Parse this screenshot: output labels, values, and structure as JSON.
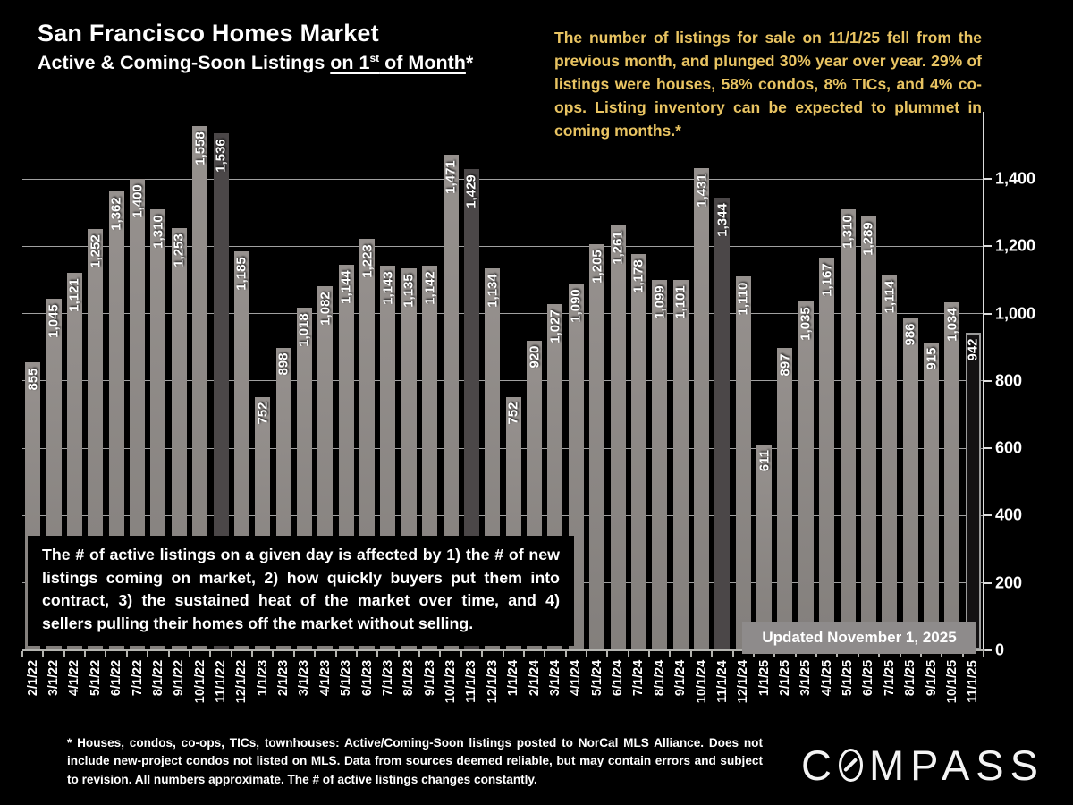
{
  "header": {
    "title": "San Francisco Homes Market",
    "subtitle_prefix": "Active & Coming-Soon Listings ",
    "subtitle_underline_1": "on 1",
    "subtitle_superscript": "st",
    "subtitle_underline_2": " of Month",
    "subtitle_suffix": "*"
  },
  "commentary": "The number of listings for sale on 11/1/25 fell from the previous month, and plunged 30% year over year. 29% of listings were houses, 58% condos, 8% TICs, and 4% co-ops. Listing inventory can be expected to plummet in coming months.*",
  "explainer_box": "The # of active listings on a given day is affected by 1) the # of new listings coming on market, 2) how quickly buyers put them into contract, 3) the sustained heat of the market over time, and 4) sellers pulling their homes off the market without selling.",
  "updated_badge": "Updated November 1, 2025",
  "footnote": "* Houses, condos, co-ops, TICs, townhouses: Active/Coming-Soon listings posted to NorCal MLS Alliance. Does not include new-project condos not listed on MLS. Data from sources deemed reliable, but may contain errors and subject to revision. All numbers approximate. The # of active listings changes constantly.",
  "logo": {
    "letter_c": "C",
    "letters_after_o": "MPASS"
  },
  "colors": {
    "background": "#000000",
    "bar": "#8a8580",
    "november_bar": "#4b4748",
    "current_bar": "#141213",
    "current_bar_border": "#9b9b9b",
    "commentary_gold": "#e9c462",
    "badge_gray": "#8e8b8b",
    "text_white": "#ffffff"
  },
  "chart_data": {
    "type": "bar",
    "title": "Active & Coming-Soon Listings on 1st of Month",
    "categories": [
      "2/1/22",
      "3/1/22",
      "4/1/22",
      "5/1/22",
      "6/1/22",
      "7/1/22",
      "8/1/22",
      "9/1/22",
      "10/1/22",
      "11/1/22",
      "12/1/22",
      "1/1/23",
      "2/1/23",
      "3/1/23",
      "4/1/23",
      "5/1/23",
      "6/1/23",
      "7/1/23",
      "8/1/23",
      "9/1/23",
      "10/1/23",
      "11/1/23",
      "12/1/23",
      "1/1/24",
      "2/1/24",
      "3/1/24",
      "4/1/24",
      "5/1/24",
      "6/1/24",
      "7/1/24",
      "8/1/24",
      "9/1/24",
      "10/1/24",
      "11/1/24",
      "12/1/24",
      "1/1/25",
      "2/1/25",
      "3/1/25",
      "4/1/25",
      "5/1/25",
      "6/1/25",
      "7/1/25",
      "8/1/25",
      "9/1/25",
      "10/1/25",
      "11/1/25"
    ],
    "values": [
      855,
      1045,
      1121,
      1252,
      1362,
      1400,
      1310,
      1253,
      1558,
      1536,
      1185,
      752,
      898,
      1018,
      1082,
      1144,
      1223,
      1143,
      1135,
      1142,
      1471,
      1429,
      1134,
      752,
      920,
      1027,
      1090,
      1205,
      1261,
      1178,
      1099,
      1101,
      1431,
      1344,
      1110,
      611,
      897,
      1035,
      1167,
      1310,
      1289,
      1114,
      986,
      915,
      1034,
      942
    ],
    "highlighted_categories": [
      "11/1/22",
      "11/1/23",
      "11/1/24"
    ],
    "current_month_category": "11/1/25",
    "y_ticks": [
      0,
      200,
      400,
      600,
      800,
      1000,
      1200,
      1400
    ],
    "ylim": [
      0,
      1600
    ],
    "grid": "horizontal",
    "legend": "none",
    "data_labels": "rotated, inside end, thousands separator"
  }
}
